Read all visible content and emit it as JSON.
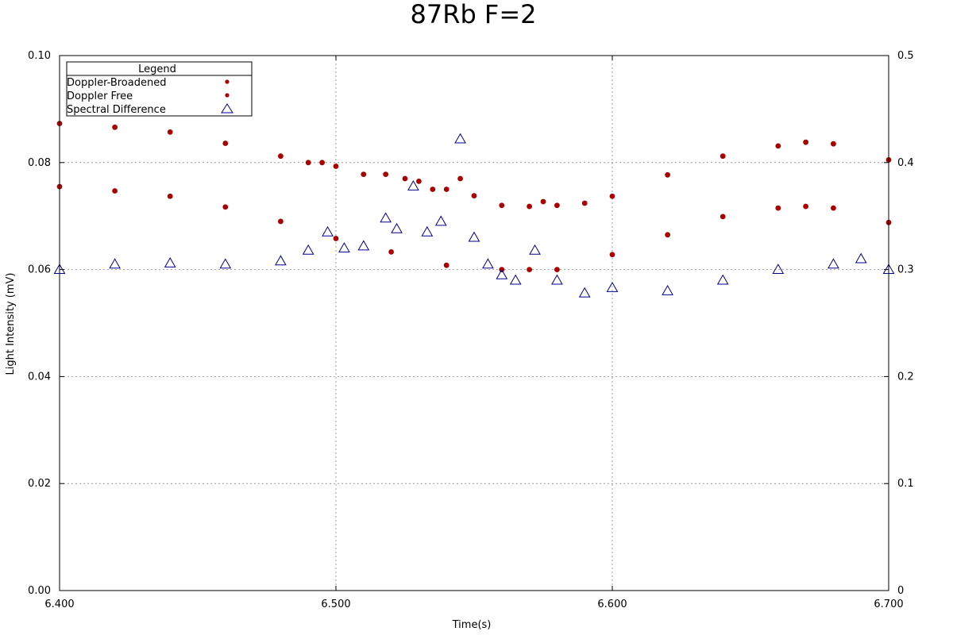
{
  "chart_data": {
    "type": "scatter",
    "title": "87Rb F=2",
    "xlabel": "Time(s)",
    "ylabel": "Light Intensity (mV)",
    "xlim": [
      6.4,
      6.7
    ],
    "ylim": [
      0,
      0.1
    ],
    "y2lim": [
      0,
      0.5
    ],
    "x_ticks": [
      "6.400",
      "6.500",
      "6.600",
      "6.700"
    ],
    "x_tick_values": [
      6.4,
      6.5,
      6.6,
      6.7
    ],
    "y_ticks": [
      "0.00",
      "0.02",
      "0.04",
      "0.06",
      "0.08",
      "0.10"
    ],
    "y_tick_values": [
      0,
      0.02,
      0.04,
      0.06,
      0.08,
      0.1
    ],
    "y2_ticks": [
      "0",
      "0.1",
      "0.2",
      "0.3",
      "0.4",
      "0.5"
    ],
    "y2_tick_values": [
      0,
      0.1,
      0.2,
      0.3,
      0.4,
      0.5
    ],
    "grid": true,
    "legend": {
      "title": "Legend",
      "placement": "top-left"
    },
    "colors": {
      "doppler": "#aa0000",
      "difference": "#00008b"
    },
    "series": [
      {
        "name": "Doppler-Broadened",
        "marker": "dot",
        "axis": "left",
        "x": [
          6.4,
          6.42,
          6.44,
          6.46,
          6.48,
          6.49,
          6.495,
          6.5,
          6.51,
          6.518,
          6.525,
          6.53,
          6.535,
          6.54,
          6.545,
          6.55,
          6.56,
          6.57,
          6.575,
          6.58,
          6.59,
          6.6,
          6.62,
          6.64,
          6.66,
          6.67,
          6.68,
          6.7
        ],
        "y": [
          0.0873,
          0.0866,
          0.0857,
          0.0836,
          0.0812,
          0.08,
          0.08,
          0.0793,
          0.0778,
          0.0778,
          0.077,
          0.0765,
          0.075,
          0.075,
          0.077,
          0.0738,
          0.072,
          0.0718,
          0.0727,
          0.072,
          0.0724,
          0.0737,
          0.0777,
          0.0812,
          0.0831,
          0.0838,
          0.0835,
          0.0805
        ]
      },
      {
        "name": "Doppler Free",
        "marker": "dot",
        "axis": "left",
        "x": [
          6.4,
          6.42,
          6.44,
          6.46,
          6.48,
          6.5,
          6.52,
          6.54,
          6.56,
          6.57,
          6.58,
          6.6,
          6.62,
          6.64,
          6.66,
          6.67,
          6.68,
          6.7
        ],
        "y": [
          0.0755,
          0.0747,
          0.0737,
          0.0717,
          0.069,
          0.0658,
          0.0633,
          0.0608,
          0.06,
          0.06,
          0.06,
          0.0628,
          0.0665,
          0.0699,
          0.0715,
          0.0718,
          0.0715,
          0.0688
        ]
      },
      {
        "name": "Spectral Difference",
        "marker": "triangle",
        "axis": "right",
        "x": [
          6.4,
          6.42,
          6.44,
          6.46,
          6.48,
          6.49,
          6.497,
          6.503,
          6.51,
          6.518,
          6.522,
          6.528,
          6.533,
          6.538,
          6.545,
          6.55,
          6.555,
          6.56,
          6.565,
          6.572,
          6.58,
          6.59,
          6.6,
          6.62,
          6.64,
          6.66,
          6.68,
          6.69,
          6.7
        ],
        "y": [
          0.3,
          0.305,
          0.306,
          0.305,
          0.308,
          0.318,
          0.335,
          0.32,
          0.322,
          0.348,
          0.338,
          0.378,
          0.335,
          0.345,
          0.422,
          0.33,
          0.305,
          0.295,
          0.29,
          0.318,
          0.29,
          0.278,
          0.283,
          0.28,
          0.29,
          0.3,
          0.305,
          0.31,
          0.3
        ]
      }
    ]
  }
}
